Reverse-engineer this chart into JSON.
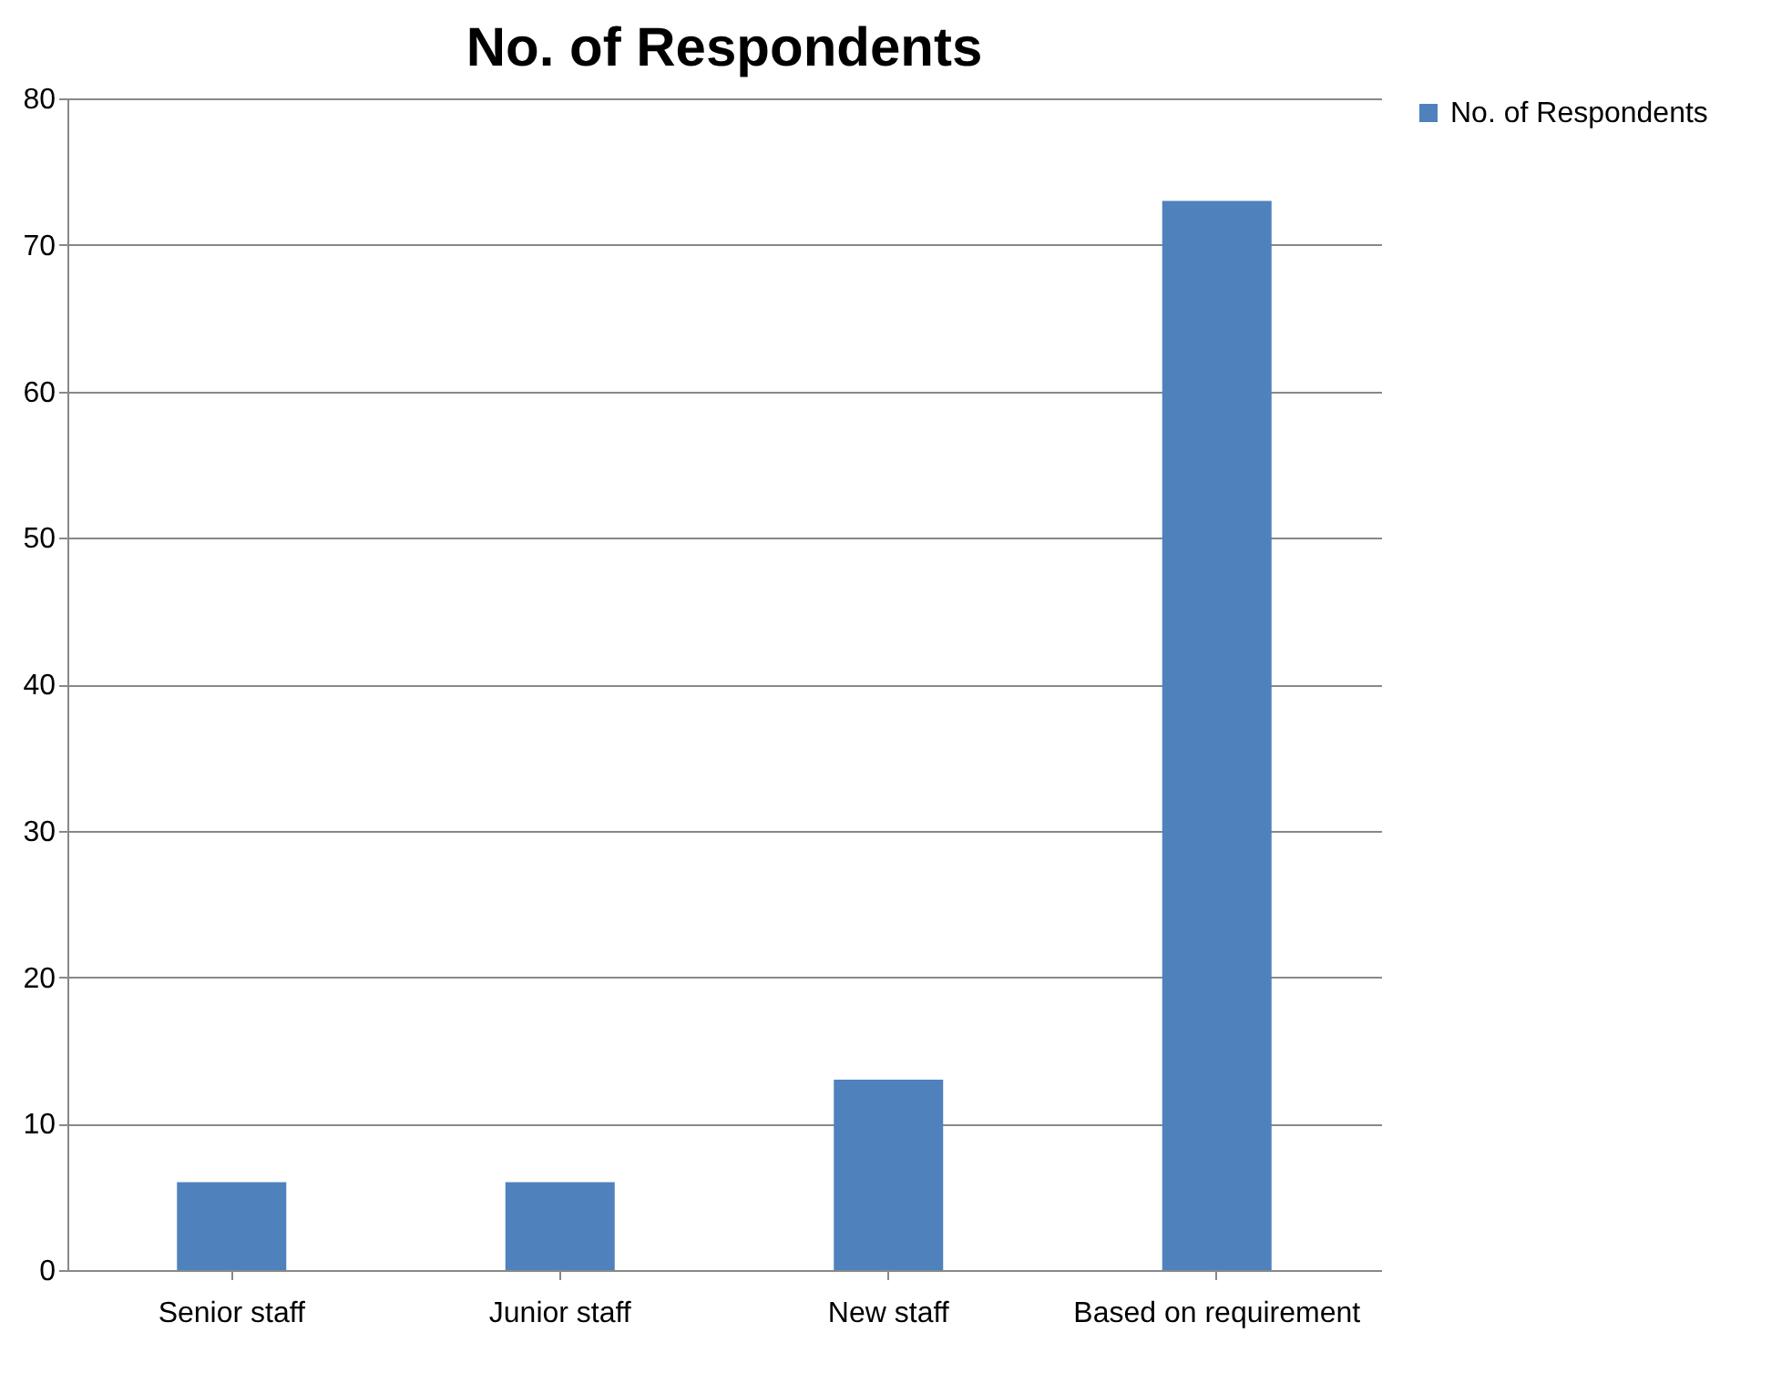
{
  "chart_data": {
    "type": "bar",
    "title": "No. of Respondents",
    "categories": [
      "Senior staff",
      "Junior staff",
      "New staff",
      "Based on requirement"
    ],
    "series": [
      {
        "name": "No. of Respondents",
        "color": "#4f81bd",
        "values": [
          6,
          6,
          13,
          73
        ]
      }
    ],
    "ylim": [
      0,
      80
    ],
    "yticks": [
      0,
      10,
      20,
      30,
      40,
      50,
      60,
      70,
      80
    ],
    "grid": "y",
    "legend": "right"
  }
}
